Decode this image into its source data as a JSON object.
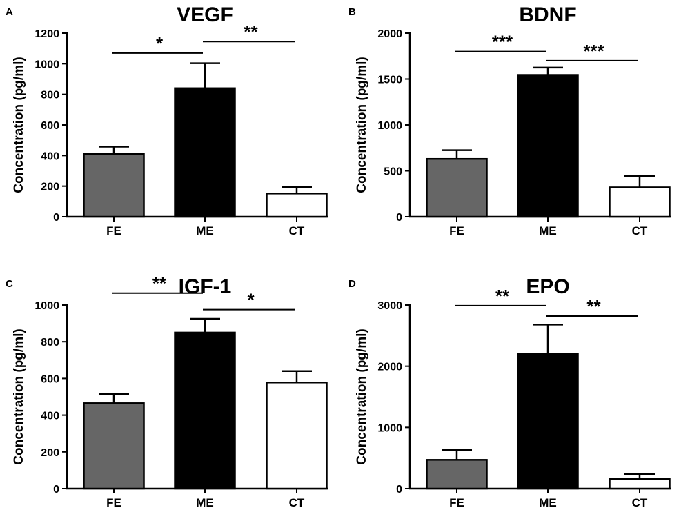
{
  "chart_data": [
    {
      "panel": "A",
      "type": "bar",
      "title": "VEGF",
      "ylabel": "Concentration (pg/ml)",
      "xlabel": "",
      "ylim": [
        0,
        1200
      ],
      "yticks": [
        0,
        200,
        400,
        600,
        800,
        1000,
        1200
      ],
      "categories": [
        "FE",
        "ME",
        "CT"
      ],
      "values": [
        410,
        840,
        152
      ],
      "errors": [
        48,
        163,
        42
      ],
      "colors": [
        "#666666",
        "#000000",
        "#ffffff"
      ],
      "significance": [
        {
          "from": "FE",
          "to": "ME",
          "label": "*",
          "level": 1070
        },
        {
          "from": "ME",
          "to": "CT",
          "label": "**",
          "level": 1145
        }
      ]
    },
    {
      "panel": "B",
      "type": "bar",
      "title": "BDNF",
      "ylabel": "Concentration (pg/ml)",
      "xlabel": "",
      "ylim": [
        0,
        2000
      ],
      "yticks": [
        0,
        500,
        1000,
        1500,
        2000
      ],
      "categories": [
        "FE",
        "ME",
        "CT"
      ],
      "values": [
        630,
        1545,
        320
      ],
      "errors": [
        95,
        80,
        125
      ],
      "colors": [
        "#666666",
        "#000000",
        "#ffffff"
      ],
      "significance": [
        {
          "from": "FE",
          "to": "ME",
          "label": "***",
          "level": 1800
        },
        {
          "from": "ME",
          "to": "CT",
          "label": "***",
          "level": 1700
        }
      ]
    },
    {
      "panel": "C",
      "type": "bar",
      "title": "IGF-1",
      "ylabel": "Concentration (pg/ml)",
      "xlabel": "",
      "ylim": [
        0,
        1000
      ],
      "yticks": [
        0,
        200,
        400,
        600,
        800,
        1000
      ],
      "categories": [
        "FE",
        "ME",
        "CT"
      ],
      "values": [
        465,
        850,
        578
      ],
      "errors": [
        50,
        75,
        62
      ],
      "colors": [
        "#666666",
        "#000000",
        "#ffffff"
      ],
      "significance": [
        {
          "from": "FE",
          "to": "ME",
          "label": "**",
          "level": 1065
        },
        {
          "from": "ME",
          "to": "CT",
          "label": "*",
          "level": 975
        }
      ]
    },
    {
      "panel": "D",
      "type": "bar",
      "title": "EPO",
      "ylabel": "Concentration (pg/ml)",
      "xlabel": "",
      "ylim": [
        0,
        3000
      ],
      "yticks": [
        0,
        1000,
        2000,
        3000
      ],
      "categories": [
        "FE",
        "ME",
        "CT"
      ],
      "values": [
        470,
        2200,
        160
      ],
      "errors": [
        165,
        480,
        80
      ],
      "colors": [
        "#666666",
        "#000000",
        "#ffffff"
      ],
      "significance": [
        {
          "from": "FE",
          "to": "ME",
          "label": "**",
          "level": 2990
        },
        {
          "from": "ME",
          "to": "CT",
          "label": "**",
          "level": 2820
        }
      ]
    }
  ]
}
